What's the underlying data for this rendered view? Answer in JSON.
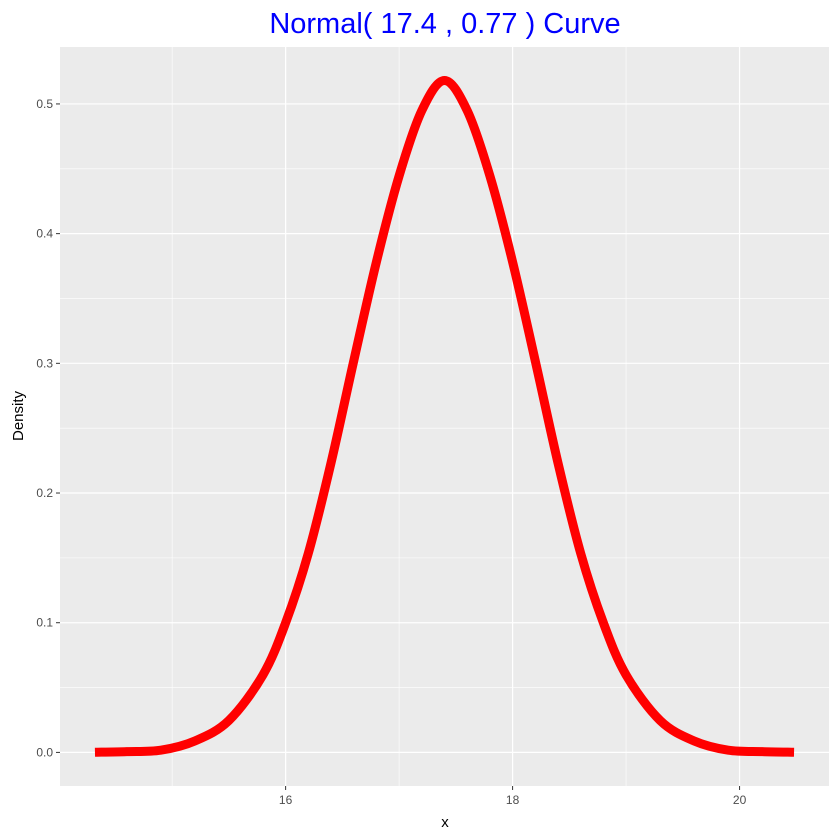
{
  "chart_data": {
    "type": "line",
    "title": "Normal( 17.4 , 0.77 ) Curve",
    "title_color": "#0000FF",
    "xlabel": "x",
    "ylabel": "Density",
    "distribution": "normal",
    "mean": 17.4,
    "sd": 0.77,
    "xlim": [
      14.32,
      20.48
    ],
    "ylim": [
      0,
      0.518
    ],
    "x_ticks": [
      16,
      18,
      20
    ],
    "x_tick_labels": [
      "16",
      "18",
      "20"
    ],
    "y_ticks": [
      0.0,
      0.1,
      0.2,
      0.3,
      0.4,
      0.5
    ],
    "y_tick_labels": [
      "0.0",
      "0.1",
      "0.2",
      "0.3",
      "0.4",
      "0.5"
    ],
    "x": [
      14.32,
      14.6,
      14.9,
      15.2,
      15.5,
      15.8,
      16.0,
      16.2,
      16.4,
      16.6,
      16.8,
      17.0,
      17.2,
      17.4,
      17.6,
      17.8,
      18.0,
      18.2,
      18.4,
      18.6,
      18.8,
      19.0,
      19.3,
      19.6,
      19.9,
      20.2,
      20.48
    ],
    "y": [
      0.0001,
      0.0006,
      0.0017,
      0.0088,
      0.0246,
      0.0597,
      0.0999,
      0.1535,
      0.2232,
      0.3018,
      0.3782,
      0.4445,
      0.4949,
      0.5181,
      0.4949,
      0.4445,
      0.3782,
      0.3018,
      0.2232,
      0.1535,
      0.0999,
      0.0597,
      0.0246,
      0.0088,
      0.0017,
      0.0006,
      0.0001
    ],
    "series": [
      {
        "values_key": "y",
        "color": "#FF0000"
      }
    ],
    "panel_background": "#EBEBEB",
    "grid": true,
    "grid_color": "#FFFFFF",
    "legend": "none"
  }
}
